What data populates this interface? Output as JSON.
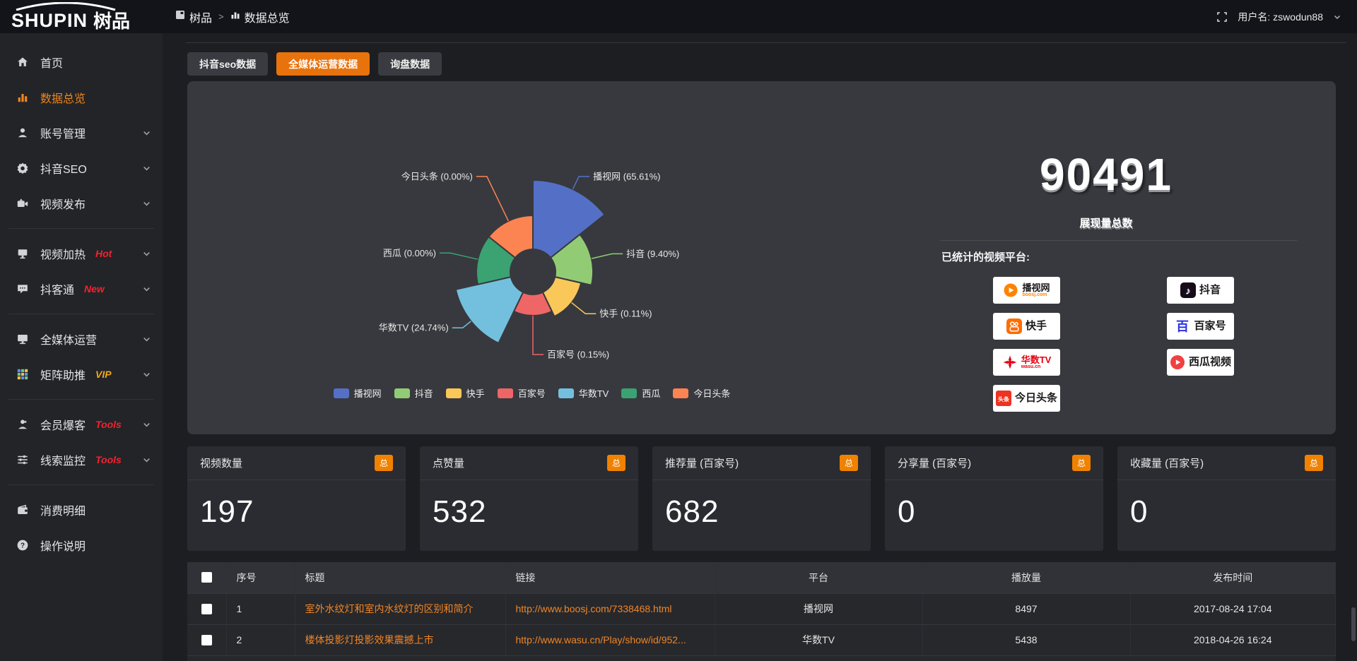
{
  "topbar": {
    "logo_primary": "SHUPIN",
    "logo_secondary": "树品",
    "breadcrumb": [
      {
        "label": "树品",
        "icon": "window-icon"
      },
      {
        "label": "数据总览",
        "icon": "bars-icon"
      }
    ],
    "breadcrumb_separator": ">",
    "username": "用户名: zswodun88"
  },
  "sidebar": {
    "items": [
      {
        "label": "首页",
        "icon": "home-icon"
      },
      {
        "label": "数据总览",
        "icon": "bar-chart-icon",
        "active": true
      },
      {
        "label": "账号管理",
        "icon": "user-icon",
        "chevron": true
      },
      {
        "label": "抖音SEO",
        "icon": "gear-icon",
        "chevron": true
      },
      {
        "label": "视频发布",
        "icon": "video-upload-icon",
        "chevron": true
      },
      {
        "divider": true
      },
      {
        "label": "视频加热",
        "icon": "heat-icon",
        "badge": "Hot",
        "badge_color": "#f5222d",
        "chevron": true
      },
      {
        "label": "抖客通",
        "icon": "chat-icon",
        "badge": "New",
        "badge_color": "#f5222d",
        "chevron": true
      },
      {
        "divider": true
      },
      {
        "label": "全媒体运营",
        "icon": "monitor-icon",
        "chevron": true
      },
      {
        "label": "矩阵助推",
        "icon": "grid-icon",
        "badge": "VIP",
        "badge_color": "#f0a818",
        "chevron": true
      },
      {
        "divider": true
      },
      {
        "label": "会员爆客",
        "icon": "member-icon",
        "badge": "Tools",
        "badge_color": "#f5222d",
        "chevron": true
      },
      {
        "label": "线索监控",
        "icon": "filter-icon",
        "badge": "Tools",
        "badge_color": "#f5222d",
        "chevron": true
      },
      {
        "divider": true
      },
      {
        "label": "消费明细",
        "icon": "wallet-icon"
      },
      {
        "label": "操作说明",
        "icon": "help-icon"
      }
    ]
  },
  "tabs": [
    {
      "label": "抖音seo数据",
      "active": false
    },
    {
      "label": "全媒体运营数据",
      "active": true
    },
    {
      "label": "询盘数据",
      "active": false
    }
  ],
  "chart_data": {
    "type": "pie",
    "subtype": "nightingale-rose",
    "categories": [
      "播视网",
      "抖音",
      "快手",
      "百家号",
      "华数TV",
      "西瓜",
      "今日头条"
    ],
    "values": [
      65.61,
      9.4,
      0.11,
      0.15,
      24.74,
      0.0,
      0.0
    ],
    "labels": [
      "播视网 (65.61%)",
      "抖音 (9.40%)",
      "快手 (0.11%)",
      "百家号 (0.15%)",
      "华数TV (24.74%)",
      "西瓜 (0.00%)",
      "今日头条 (0.00%)"
    ],
    "colors": [
      "#5470c6",
      "#91cc75",
      "#fac858",
      "#ee6666",
      "#73c0de",
      "#3ba272",
      "#fc8452"
    ],
    "radii": [
      130,
      85,
      70,
      62,
      112,
      80,
      80
    ],
    "inner_radius": 32,
    "leader_lengths": [
      20,
      30,
      25,
      55,
      15,
      40,
      70
    ],
    "legend": [
      "播视网",
      "抖音",
      "快手",
      "百家号",
      "华数TV",
      "西瓜",
      "今日头条"
    ],
    "legend_position": "bottom",
    "title": ""
  },
  "summary": {
    "total": "90491",
    "total_label": "展现量总数",
    "platforms_label": "已统计的视频平台:",
    "platform_columns": [
      [
        {
          "name": "播视网",
          "sub": "boosj.com",
          "style": "boosj"
        },
        {
          "name": "快手",
          "style": "kuaishou"
        },
        {
          "name": "华数TV",
          "sub": "wasu.cn",
          "style": "wasu"
        },
        {
          "name": "今日头条",
          "style": "toutiao",
          "icon_text": "头条"
        }
      ],
      [
        {
          "name": "抖音",
          "style": "douyin",
          "icon_text": "♪"
        },
        {
          "name": "百家号",
          "style": "baijia",
          "icon_text": "百"
        },
        {
          "name": "西瓜视频",
          "style": "xigua"
        }
      ]
    ]
  },
  "stat_cards": [
    {
      "label": "视频数量",
      "badge": "总",
      "value": "197"
    },
    {
      "label": "点赞量",
      "badge": "总",
      "value": "532"
    },
    {
      "label": "推荐量 (百家号)",
      "badge": "总",
      "value": "682"
    },
    {
      "label": "分享量 (百家号)",
      "badge": "总",
      "value": "0"
    },
    {
      "label": "收藏量 (百家号)",
      "badge": "总",
      "value": "0"
    }
  ],
  "table": {
    "headers": [
      "序号",
      "标题",
      "链接",
      "平台",
      "播放量",
      "发布时间"
    ],
    "rows": [
      {
        "no": "1",
        "title": "室外水纹灯和室内水纹灯的区别和简介",
        "link": "http://www.boosj.com/7338468.html",
        "platform": "播视网",
        "plays": "8497",
        "time": "2017-08-24 17:04"
      },
      {
        "no": "2",
        "title": "楼体投影灯投影效果震撼上市",
        "link": "http://www.wasu.cn/Play/show/id/952...",
        "platform": "华数TV",
        "plays": "5438",
        "time": "2018-04-26 16:24"
      }
    ]
  },
  "colors": {
    "accent_orange": "#e8720c",
    "badge_orange": "#f08200",
    "link_orange": "#ef8526",
    "sidebar_active": "#f08519"
  }
}
